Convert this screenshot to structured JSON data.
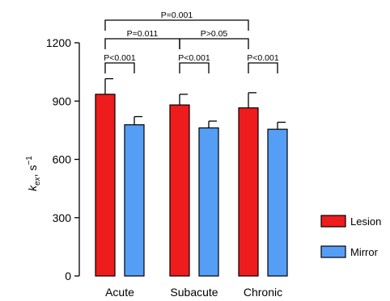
{
  "chart_data": {
    "type": "bar",
    "categories": [
      "Acute",
      "Subacute",
      "Chronic"
    ],
    "series": [
      {
        "name": "Lesion",
        "color": "#ee1c1c",
        "values": [
          935,
          880,
          865
        ],
        "errors": [
          80,
          55,
          78
        ]
      },
      {
        "name": "Mirror",
        "color": "#559ef5",
        "values": [
          778,
          762,
          755
        ],
        "errors": [
          42,
          35,
          36
        ]
      }
    ],
    "ylabel": {
      "main": "k",
      "sub": "ex",
      "rest": ", s",
      "sup": "−1"
    },
    "ylim": [
      0,
      1200
    ],
    "yticks": [
      "0",
      "300",
      "600",
      "900",
      "1200"
    ],
    "legend": {
      "position": "bottom-right"
    },
    "annotations": [
      {
        "text": "P<0.001",
        "from": "Acute.Lesion",
        "to": "Acute.Mirror"
      },
      {
        "text": "P<0.001",
        "from": "Subacute.Lesion",
        "to": "Subacute.Mirror"
      },
      {
        "text": "P<0.001",
        "from": "Chronic.Lesion",
        "to": "Chronic.Mirror"
      },
      {
        "text": "P=0.011",
        "from": "Acute.Lesion",
        "to": "Subacute.Lesion"
      },
      {
        "text": "P>0.05",
        "from": "Subacute.Lesion",
        "to": "Chronic.Lesion"
      },
      {
        "text": "P=0.001",
        "from": "Acute.Lesion",
        "to": "Chronic.Lesion"
      }
    ]
  }
}
